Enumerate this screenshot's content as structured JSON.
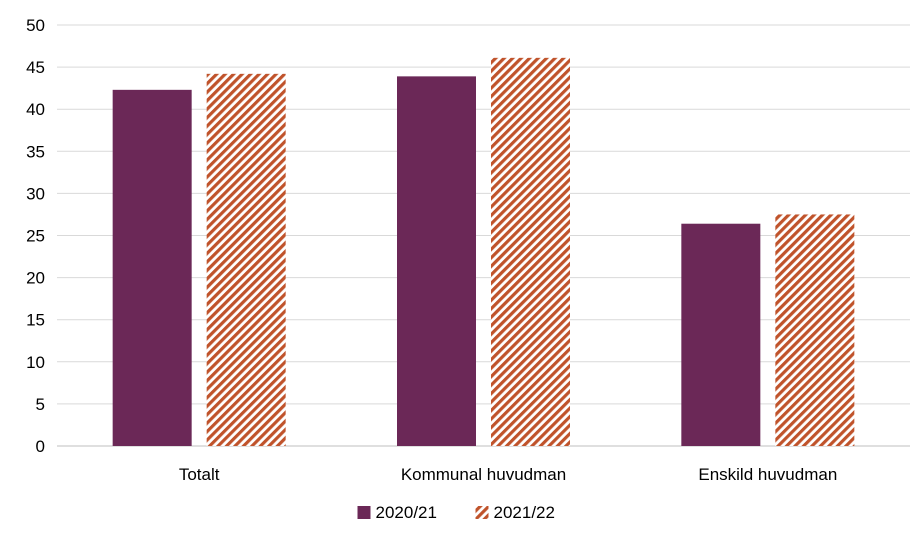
{
  "chart_data": {
    "type": "bar",
    "categories": [
      "Totalt",
      "Kommunal huvudman",
      "Enskild huvudman"
    ],
    "series": [
      {
        "name": "2020/21",
        "values": [
          42.3,
          43.9,
          26.4
        ],
        "color": "#6b2857",
        "pattern": "solid"
      },
      {
        "name": "2021/22",
        "values": [
          44.2,
          46.1,
          27.5
        ],
        "color": "#c0532b",
        "pattern": "diagonal-hatch"
      }
    ],
    "title": "",
    "xlabel": "",
    "ylabel": "",
    "ylim": [
      0,
      50
    ],
    "yticks": [
      0,
      5,
      10,
      15,
      20,
      25,
      30,
      35,
      40,
      45,
      50
    ],
    "grid": true,
    "legend_position": "bottom-center"
  }
}
